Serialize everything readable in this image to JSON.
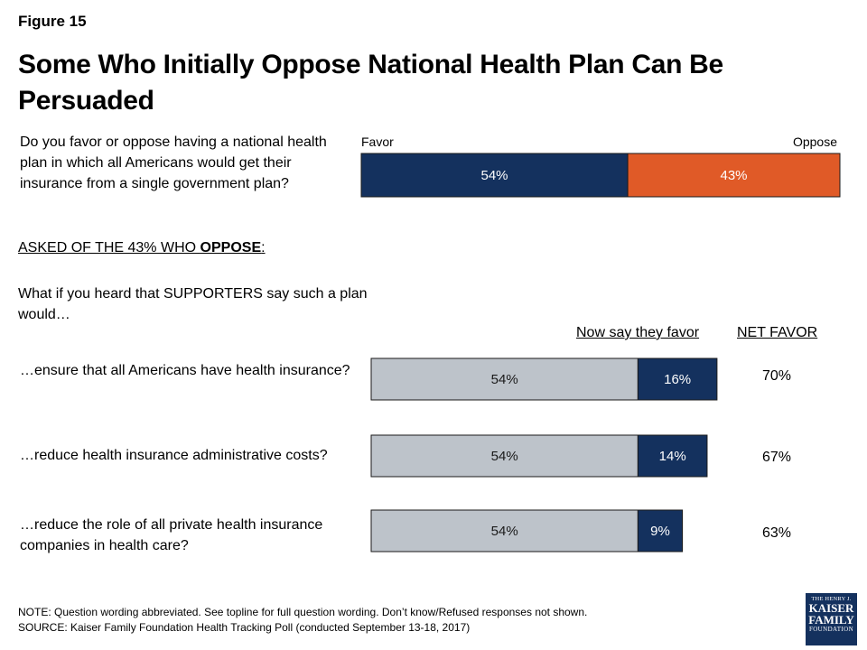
{
  "figure_label": "Figure 15",
  "title": "Some Who Initially Oppose National Health Plan Can Be Persuaded",
  "question": "Do you favor or oppose having a national health plan in which all Americans would get their insurance from a single government plan?",
  "asked_prefix": "ASKED OF THE 43% WHO ",
  "asked_bold": "OPPOSE",
  "asked_suffix": ":",
  "intro": "What if you heard that SUPPORTERS say such a plan would…",
  "col_now_label": "Now say they favor",
  "col_net_label": "NET FAVOR",
  "note": "NOTE: Question wording abbreviated. See topline for full question wording. Don’t know/Refused responses not shown.",
  "source": "SOURCE: Kaiser Family Foundation Health Tracking Poll (conducted September 13-18, 2017)",
  "logo": {
    "line1": "THE HENRY J.",
    "line2": "KAISER",
    "line3": "FAMILY",
    "line4": "FOUNDATION"
  },
  "colors": {
    "navy": "#14315e",
    "orange": "#e05a27",
    "gray": "#bdc3ca"
  },
  "chart_data": [
    {
      "type": "bar",
      "orientation": "horizontal-stacked",
      "legend": [
        "Favor",
        "Oppose"
      ],
      "series": [
        {
          "name": "Favor",
          "values": [
            54
          ],
          "labels": [
            "54%"
          ],
          "color": "#14315e"
        },
        {
          "name": "Oppose",
          "values": [
            43
          ],
          "labels": [
            "43%"
          ],
          "color": "#e05a27"
        }
      ]
    },
    {
      "type": "bar",
      "orientation": "horizontal-stacked",
      "categories": [
        "…ensure that all Americans have health insurance?",
        "…reduce health insurance administrative costs?",
        "…reduce the role of all private health insurance companies in health care?"
      ],
      "series": [
        {
          "values": [
            54,
            54,
            54
          ],
          "labels": [
            "54%",
            "54%",
            "54%"
          ],
          "color": "#bdc3ca"
        },
        {
          "name": "Now say they favor",
          "values": [
            16,
            14,
            9
          ],
          "labels": [
            "16%",
            "14%",
            "9%"
          ],
          "color": "#14315e"
        }
      ],
      "net_favor": [
        "70%",
        "67%",
        "63%"
      ]
    }
  ]
}
